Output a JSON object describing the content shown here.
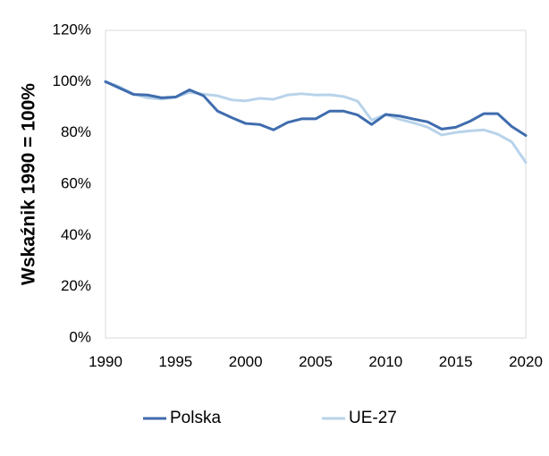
{
  "chart_data": {
    "type": "line",
    "title": "",
    "xlabel": "",
    "ylabel": "Wskaźnik 1990 = 100%",
    "xlim": [
      1990,
      2020
    ],
    "ylim": [
      0,
      120
    ],
    "x_ticks": [
      1990,
      1995,
      2000,
      2005,
      2010,
      2015,
      2020
    ],
    "y_ticks": [
      0,
      20,
      40,
      60,
      80,
      100,
      120
    ],
    "y_tick_labels": [
      "0%",
      "20%",
      "40%",
      "60%",
      "80%",
      "100%",
      "120%"
    ],
    "grid": false,
    "legend": "bottom",
    "x": [
      1990,
      1991,
      1992,
      1993,
      1994,
      1995,
      1996,
      1997,
      1998,
      1999,
      2000,
      2001,
      2002,
      2003,
      2004,
      2005,
      2006,
      2007,
      2008,
      2009,
      2010,
      2011,
      2012,
      2013,
      2014,
      2015,
      2016,
      2017,
      2018,
      2019,
      2020
    ],
    "series": [
      {
        "name": "Polska",
        "color": "#3f6cae",
        "values": [
          100,
          97.5,
          95,
          94.8,
          93.7,
          94,
          96.8,
          94.5,
          88.5,
          86,
          83.7,
          83.3,
          81.2,
          84.1,
          85.5,
          85.5,
          88.5,
          88.5,
          87,
          83.3,
          87.2,
          86.6,
          85.4,
          84.3,
          81.5,
          82.2,
          84.5,
          87.5,
          87.5,
          82.5,
          79
        ]
      },
      {
        "name": "UE-27",
        "color": "#b8d3ea",
        "values": [
          100,
          98,
          95.2,
          93.7,
          93.2,
          93.9,
          95.9,
          95.1,
          94.5,
          92.9,
          92.5,
          93.5,
          93.1,
          94.8,
          95.3,
          94.8,
          94.9,
          94.2,
          92.4,
          85,
          87.2,
          85.3,
          83.9,
          82.2,
          79.2,
          80.2,
          80.8,
          81.2,
          79.5,
          76.5,
          68.5
        ]
      }
    ]
  }
}
